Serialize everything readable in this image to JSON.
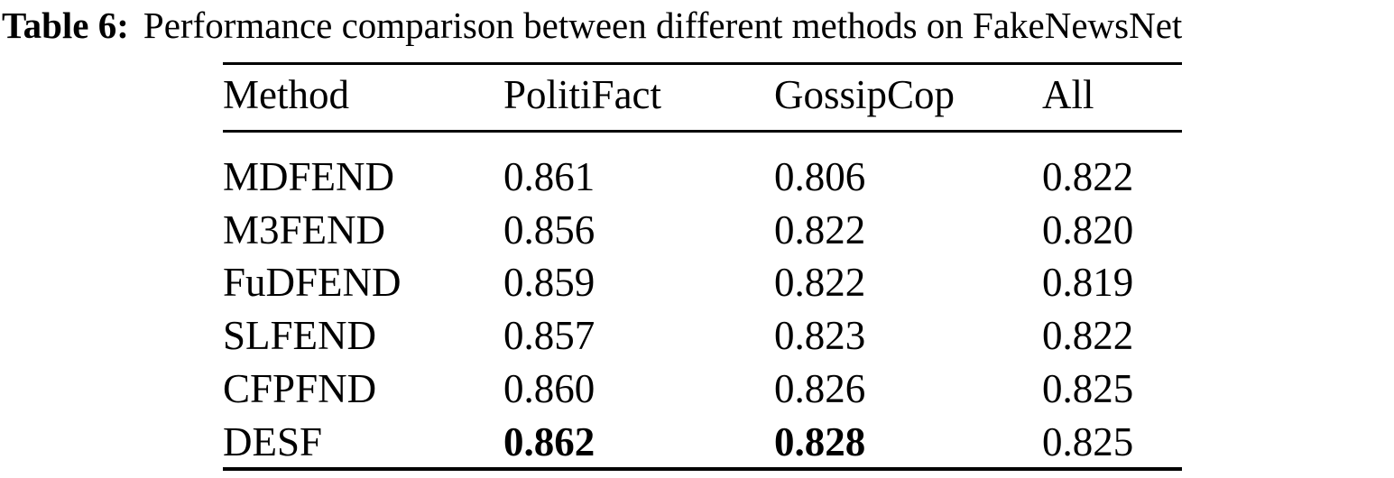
{
  "caption": {
    "label": "Table 6:",
    "text": "Performance comparison between different methods on FakeNewsNet"
  },
  "table": {
    "columns": [
      "Method",
      "PolitiFact",
      "GossipCop",
      "All"
    ],
    "rows": [
      {
        "method": "MDFEND",
        "values": [
          "0.861",
          "0.806",
          "0.822"
        ],
        "bold": [
          false,
          false,
          false,
          false
        ]
      },
      {
        "method": "M3FEND",
        "values": [
          "0.856",
          "0.822",
          "0.820"
        ],
        "bold": [
          false,
          false,
          false,
          false
        ]
      },
      {
        "method": "FuDFEND",
        "values": [
          "0.859",
          "0.822",
          "0.819"
        ],
        "bold": [
          false,
          false,
          false,
          false
        ]
      },
      {
        "method": "SLFEND",
        "values": [
          "0.857",
          "0.823",
          "0.822"
        ],
        "bold": [
          false,
          false,
          false,
          false
        ]
      },
      {
        "method": "CFPFND",
        "values": [
          "0.860",
          "0.826",
          "0.825"
        ],
        "bold": [
          false,
          false,
          false,
          false
        ]
      },
      {
        "method": "DESF",
        "values": [
          "0.862",
          "0.828",
          "0.825"
        ],
        "bold": [
          false,
          true,
          true,
          false
        ]
      }
    ]
  },
  "layout_note": "",
  "colors": {
    "text": "#000000",
    "background": "#ffffff",
    "rule": "#000000"
  }
}
